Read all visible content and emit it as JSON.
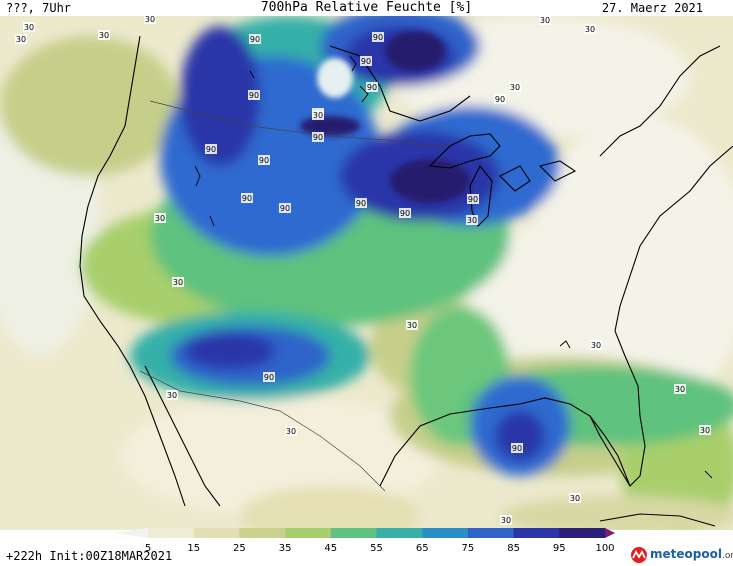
{
  "header": {
    "left": "???, 7Uhr",
    "title": "700hPa Relative Feuchte [%]",
    "right": "27. Maerz 2021"
  },
  "footer": {
    "run": "+222h  Init:00Z18MAR2021"
  },
  "brand": {
    "name": "meteopool",
    "suffix": ".org",
    "logo_colors": [
      "#e02020",
      "#1a60a8"
    ]
  },
  "legend": {
    "ticks": [
      "5",
      "15",
      "25",
      "35",
      "45",
      "55",
      "65",
      "75",
      "85",
      "95",
      "100"
    ],
    "colors": [
      "#f2f2f0",
      "#efedd6",
      "#e3dfb4",
      "#cdd08d",
      "#a8cf6c",
      "#5fc27e",
      "#36b0a8",
      "#2a8fc4",
      "#2f63c9",
      "#2a36a8",
      "#2b1f7a"
    ]
  },
  "contour_labels": [
    "90",
    "90",
    "90",
    "90",
    "90",
    "90",
    "90",
    "90",
    "90",
    "90",
    "90",
    "90",
    "90",
    "90",
    "90",
    "90",
    "30",
    "30",
    "30",
    "30",
    "30",
    "30",
    "30",
    "30",
    "30",
    "30",
    "30",
    "30",
    "30",
    "30",
    "30",
    "30",
    "30",
    "30",
    "90",
    "30"
  ],
  "colors": {
    "dry": "#f4f3e8",
    "low": "#e6e2c2",
    "mid": "#c6cf8a",
    "green": "#6cc77c",
    "teal": "#2fa9b0",
    "blue": "#2f6ad0",
    "deep": "#2a2f9c",
    "darkest": "#251b6e"
  }
}
